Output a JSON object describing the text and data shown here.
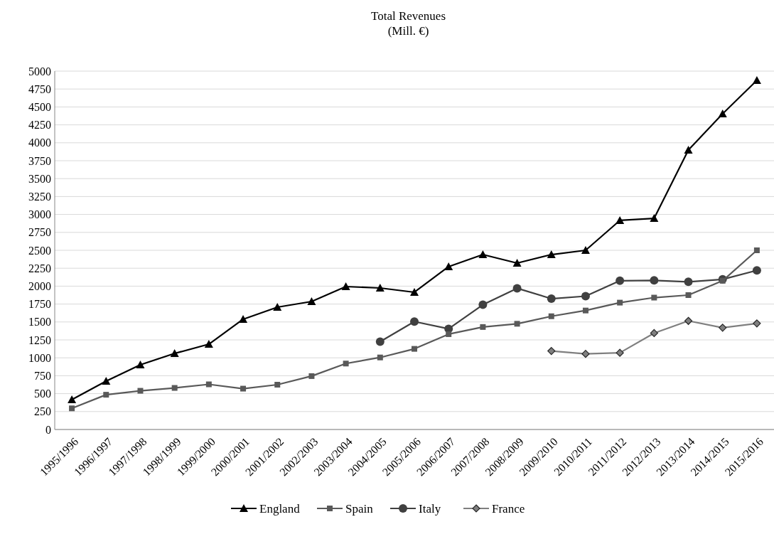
{
  "chart_data": {
    "type": "line",
    "title": "Total Revenues\n(Mill. €)",
    "categories": [
      "1995/1996",
      "1996/1997",
      "1997/1998",
      "1998/1999",
      "1999/2000",
      "2000/2001",
      "2001/2002",
      "2002/2003",
      "2003/2004",
      "2004/2005",
      "2005/2006",
      "2006/2007",
      "2007/2008",
      "2008/2009",
      "2009/2010",
      "2010/2011",
      "2011/2012",
      "2012/2013",
      "2013/2014",
      "2014/2015",
      "2015/2016"
    ],
    "series": [
      {
        "name": "England",
        "color": "#000000",
        "marker": "triangle",
        "values": [
          417,
          675,
          903,
          1061,
          1190,
          1538,
          1706,
          1786,
          1994,
          1974,
          1915,
          2272,
          2440,
          2321,
          2440,
          2500,
          2917,
          2946,
          3899,
          4405,
          4871
        ]
      },
      {
        "name": "Spain",
        "color": "#595959",
        "marker": "square",
        "values": [
          295,
          485,
          540,
          580,
          630,
          570,
          625,
          745,
          920,
          1005,
          1125,
          1330,
          1430,
          1475,
          1580,
          1660,
          1770,
          1840,
          1875,
          2075,
          2500
        ]
      },
      {
        "name": "Italy",
        "color": "#404040",
        "marker": "circle",
        "values": [
          null,
          null,
          null,
          null,
          null,
          null,
          null,
          null,
          null,
          1225,
          1505,
          1405,
          1740,
          1970,
          1825,
          1860,
          2075,
          2080,
          2060,
          2095,
          2220
        ]
      },
      {
        "name": "France",
        "color": "#7f7f7f",
        "marker": "diamond",
        "values": [
          null,
          null,
          null,
          null,
          null,
          null,
          null,
          null,
          null,
          null,
          null,
          null,
          null,
          null,
          1095,
          1055,
          1070,
          1345,
          1515,
          1420,
          1480
        ]
      }
    ],
    "ylim": [
      0,
      5000
    ],
    "yticks": [
      0,
      250,
      500,
      750,
      1000,
      1250,
      1500,
      1750,
      2000,
      2250,
      2500,
      2750,
      3000,
      3250,
      3500,
      3750,
      4000,
      4250,
      4500,
      4750,
      5000
    ],
    "grid": "y",
    "legend": "bottom",
    "line_style": "solid"
  }
}
